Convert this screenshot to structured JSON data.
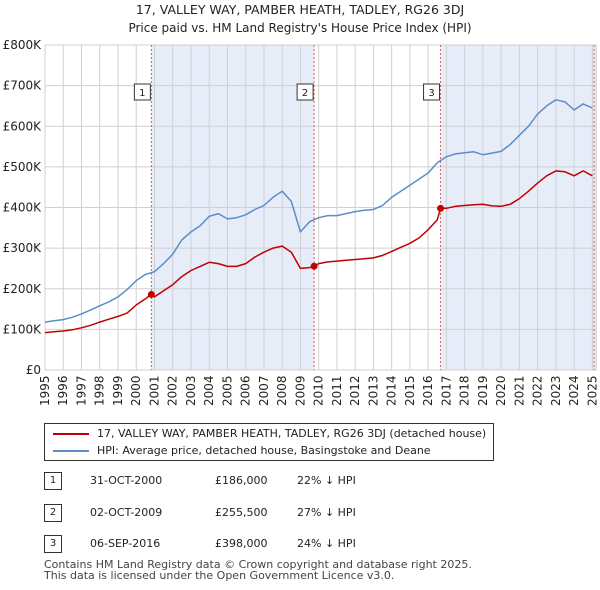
{
  "chart_data": {
    "type": "line",
    "title": "17, VALLEY WAY, PAMBER HEATH, TADLEY, RG26 3DJ",
    "subtitle": "Price paid vs. HM Land Registry's House Price Index (HPI)",
    "xlim": [
      1995,
      2025.2
    ],
    "ylim": [
      0,
      800000
    ],
    "x_ticks": [
      1995,
      1996,
      1997,
      1998,
      1999,
      2000,
      2001,
      2002,
      2003,
      2004,
      2005,
      2006,
      2007,
      2008,
      2009,
      2010,
      2011,
      2012,
      2013,
      2014,
      2015,
      2016,
      2017,
      2018,
      2019,
      2020,
      2021,
      2022,
      2023,
      2024,
      2025
    ],
    "x_tick_labels": [
      "1995",
      "1996",
      "1997",
      "1998",
      "1999",
      "2000",
      "2001",
      "2002",
      "2003",
      "2004",
      "2005",
      "2006",
      "2007",
      "2008",
      "2009",
      "2010",
      "2011",
      "2012",
      "2013",
      "2014",
      "2015",
      "2016",
      "2017",
      "2018",
      "2019",
      "2020",
      "2021",
      "2022",
      "2023",
      "2024",
      "2025"
    ],
    "y_ticks": [
      0,
      100000,
      200000,
      300000,
      400000,
      500000,
      600000,
      700000,
      800000
    ],
    "y_tick_labels": [
      "£0",
      "£100K",
      "£200K",
      "£300K",
      "£400K",
      "£500K",
      "£600K",
      "£700K",
      "£800K"
    ],
    "grid": true,
    "series": [
      {
        "name": "HPI: Average price, detached house, Basingstoke and Deane",
        "color": "#5b8dc9",
        "x": [
          1995,
          1995.5,
          1996,
          1996.5,
          1997,
          1997.5,
          1998,
          1998.5,
          1999,
          1999.5,
          2000,
          2000.5,
          2001,
          2001.5,
          2002,
          2002.5,
          2003,
          2003.5,
          2004,
          2004.5,
          2005,
          2005.5,
          2006,
          2006.5,
          2007,
          2007.5,
          2008,
          2008.5,
          2009,
          2009.5,
          2010,
          2010.5,
          2011,
          2011.5,
          2012,
          2012.5,
          2013,
          2013.5,
          2014,
          2014.5,
          2015,
          2015.5,
          2016,
          2016.5,
          2017,
          2017.5,
          2018,
          2018.5,
          2019,
          2019.5,
          2020,
          2020.5,
          2021,
          2021.5,
          2022,
          2022.5,
          2023,
          2023.5,
          2024,
          2024.5,
          2025
        ],
        "values": [
          118000,
          121000,
          124000,
          130000,
          138000,
          148000,
          158000,
          168000,
          180000,
          198000,
          220000,
          235000,
          242000,
          262000,
          285000,
          320000,
          340000,
          355000,
          378000,
          385000,
          372000,
          375000,
          382000,
          395000,
          405000,
          425000,
          440000,
          415000,
          340000,
          365000,
          375000,
          380000,
          380000,
          385000,
          390000,
          393000,
          395000,
          405000,
          425000,
          440000,
          455000,
          470000,
          485000,
          510000,
          525000,
          532000,
          535000,
          537000,
          530000,
          534000,
          538000,
          555000,
          578000,
          600000,
          630000,
          650000,
          665000,
          660000,
          640000,
          655000,
          645000
        ]
      },
      {
        "name": "17, VALLEY WAY, PAMBER HEATH, TADLEY, RG26 3DJ (detached house)",
        "color": "#c00000",
        "x": [
          1995,
          1995.5,
          1996,
          1996.5,
          1997,
          1997.5,
          1998,
          1998.5,
          1999,
          1999.5,
          2000,
          2000.5,
          2000.83,
          2001,
          2001.5,
          2002,
          2002.5,
          2003,
          2003.5,
          2004,
          2004.5,
          2005,
          2005.5,
          2006,
          2006.5,
          2007,
          2007.5,
          2008,
          2008.5,
          2009,
          2009.5,
          2009.75,
          2010,
          2010.5,
          2011,
          2011.5,
          2012,
          2012.5,
          2013,
          2013.5,
          2014,
          2014.5,
          2015,
          2015.5,
          2016,
          2016.5,
          2016.68,
          2017,
          2017.5,
          2018,
          2018.5,
          2019,
          2019.5,
          2020,
          2020.5,
          2021,
          2021.5,
          2022,
          2022.5,
          2023,
          2023.5,
          2024,
          2024.5,
          2025
        ],
        "values": [
          92000,
          94000,
          96000,
          99000,
          104000,
          110000,
          118000,
          125000,
          132000,
          140000,
          160000,
          175000,
          186000,
          180000,
          195000,
          210000,
          230000,
          245000,
          255000,
          265000,
          262000,
          255000,
          255000,
          262000,
          278000,
          290000,
          300000,
          305000,
          290000,
          250000,
          252000,
          255500,
          262000,
          266000,
          268000,
          270000,
          272000,
          274000,
          276000,
          282000,
          292000,
          302000,
          312000,
          325000,
          345000,
          370000,
          398000,
          398000,
          403000,
          405000,
          407000,
          408000,
          404000,
          403000,
          408000,
          422000,
          440000,
          460000,
          478000,
          490000,
          488000,
          478000,
          490000,
          478000
        ]
      }
    ],
    "annotations": [
      {
        "label": "1",
        "x": 2000.83,
        "y": 186000
      },
      {
        "label": "2",
        "x": 2009.75,
        "y": 255500
      },
      {
        "label": "3",
        "x": 2016.68,
        "y": 398000
      }
    ]
  },
  "legend": {
    "property_label": "17, VALLEY WAY, PAMBER HEATH, TADLEY, RG26 3DJ (detached house)",
    "property_color": "#c00000",
    "hpi_label": "HPI: Average price, detached house, Basingstoke and Deane",
    "hpi_color": "#5b8dc9"
  },
  "sales": [
    {
      "num": "1",
      "date": "31-OCT-2000",
      "price": "£186,000",
      "hpi": "22% ↓ HPI"
    },
    {
      "num": "2",
      "date": "02-OCT-2009",
      "price": "£255,500",
      "hpi": "27% ↓ HPI"
    },
    {
      "num": "3",
      "date": "06-SEP-2016",
      "price": "£398,000",
      "hpi": "24% ↓ HPI"
    }
  ],
  "footer": {
    "line1": "Contains HM Land Registry data © Crown copyright and database right 2025.",
    "line2": "This data is licensed under the Open Government Licence v3.0."
  }
}
